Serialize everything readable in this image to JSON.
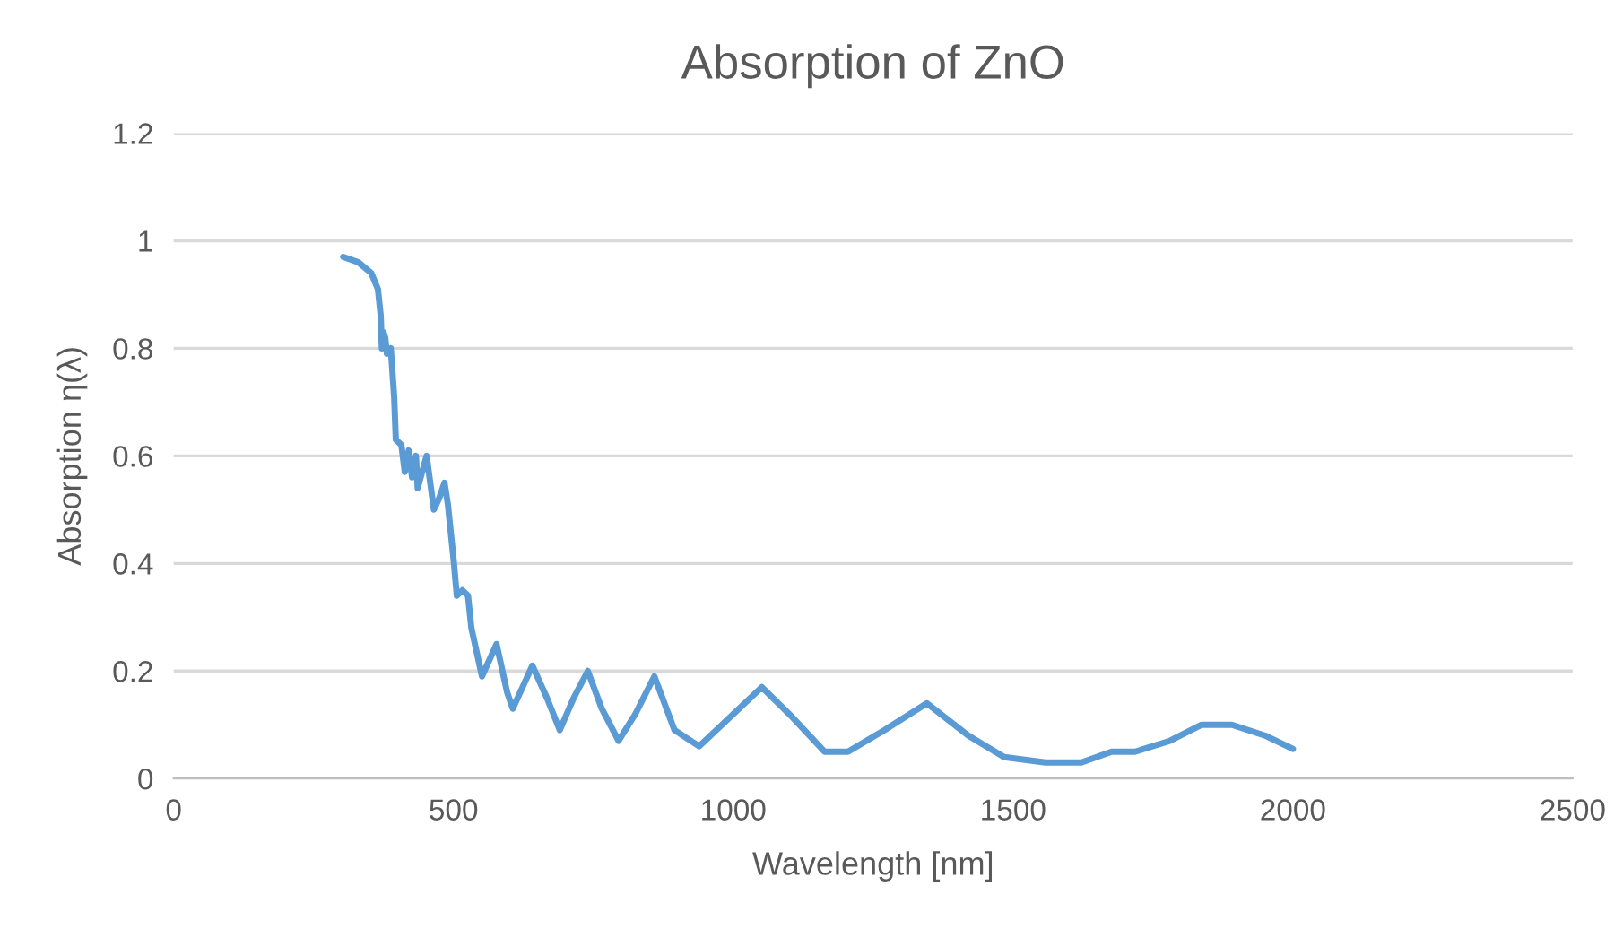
{
  "chart_data": {
    "type": "line",
    "title": "Absorption of ZnO",
    "xlabel": "Wavelength [nm]",
    "ylabel": "Absorption η(λ)",
    "xlim": [
      0,
      2500
    ],
    "xticks": [
      0,
      500,
      1000,
      1500,
      2000,
      2500
    ],
    "ylim": [
      0,
      1.2
    ],
    "yticks": [
      0,
      0.2,
      0.4,
      0.6,
      0.8,
      1,
      1.2
    ],
    "grid": "y",
    "legend": false,
    "series": [
      {
        "color": "#5b9bd5",
        "x": [
          303,
          330,
          353,
          365,
          370,
          372,
          375,
          378,
          381,
          388,
          394,
          397,
          407,
          413,
          420,
          426,
          433,
          436,
          452,
          465,
          474,
          484,
          490,
          500,
          506,
          516,
          526,
          532,
          551,
          577,
          596,
          606,
          641,
          667,
          690,
          715,
          740,
          765,
          795,
          825,
          859,
          895,
          939,
          990,
          1051,
          1100,
          1163,
          1205,
          1270,
          1346,
          1420,
          1484,
          1558,
          1622,
          1676,
          1718,
          1780,
          1837,
          1891,
          1950,
          2000
        ],
        "values": [
          0.97,
          0.96,
          0.94,
          0.91,
          0.86,
          0.8,
          0.83,
          0.82,
          0.79,
          0.8,
          0.71,
          0.63,
          0.62,
          0.57,
          0.61,
          0.56,
          0.6,
          0.54,
          0.6,
          0.5,
          0.52,
          0.55,
          0.51,
          0.41,
          0.34,
          0.35,
          0.34,
          0.28,
          0.19,
          0.25,
          0.16,
          0.13,
          0.21,
          0.15,
          0.09,
          0.15,
          0.2,
          0.13,
          0.07,
          0.12,
          0.19,
          0.09,
          0.06,
          0.11,
          0.17,
          0.12,
          0.05,
          0.05,
          0.09,
          0.14,
          0.08,
          0.04,
          0.03,
          0.03,
          0.05,
          0.05,
          0.07,
          0.1,
          0.1,
          0.08,
          0.055
        ]
      }
    ]
  }
}
